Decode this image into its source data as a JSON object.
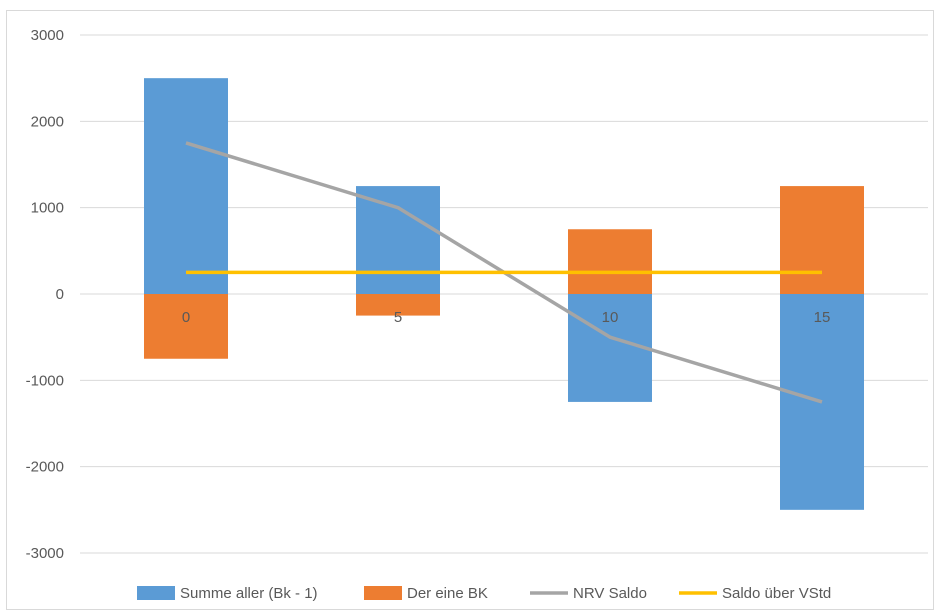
{
  "chart_data": {
    "type": "bar",
    "stacked": true,
    "categories": [
      "0",
      "5",
      "10",
      "15"
    ],
    "series": [
      {
        "name": "Summe aller (Bk - 1)",
        "kind": "bar",
        "color": "#5b9bd5",
        "values": [
          2500,
          1250,
          -1250,
          -2500
        ]
      },
      {
        "name": "Der eine BK",
        "kind": "bar",
        "color": "#ed7d31",
        "values": [
          -750,
          -250,
          750,
          1250
        ]
      },
      {
        "name": "NRV Saldo",
        "kind": "line",
        "color": "#a5a5a5",
        "values": [
          1750,
          1000,
          -500,
          -1250
        ]
      },
      {
        "name": "Saldo über VStd",
        "kind": "line",
        "color": "#ffc000",
        "values": [
          250,
          250,
          250,
          250
        ]
      }
    ],
    "yticks": [
      "3000",
      "2000",
      "1000",
      "0",
      "-1000",
      "-2000",
      "-3000"
    ],
    "ylim": [
      -3000,
      3000
    ],
    "grid": true,
    "legend": "bottom",
    "title": "",
    "xlabel": "",
    "ylabel": ""
  }
}
